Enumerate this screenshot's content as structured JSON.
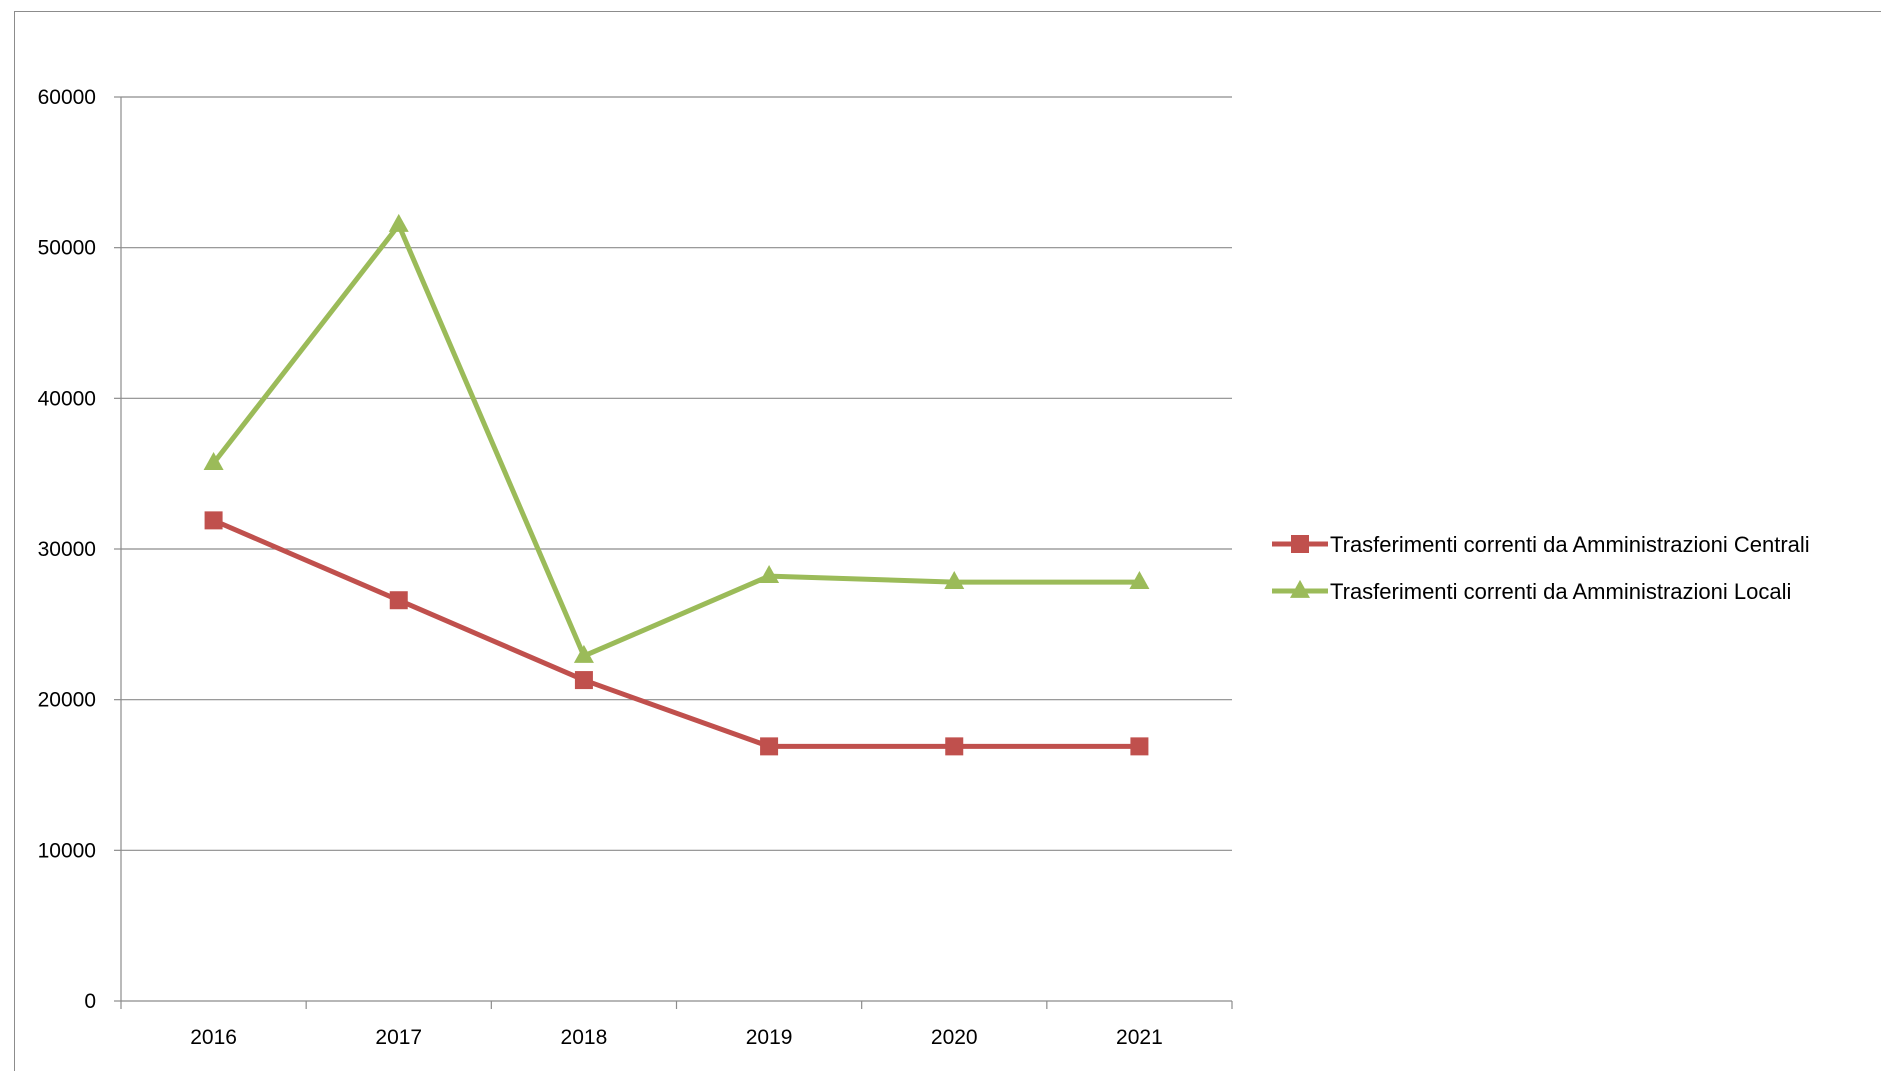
{
  "chart_data": {
    "type": "line",
    "title": "",
    "xlabel": "",
    "ylabel": "",
    "categories": [
      "2016",
      "2017",
      "2018",
      "2019",
      "2020",
      "2021"
    ],
    "ylim": [
      0,
      60000
    ],
    "yticks": [
      "0",
      "10000",
      "20000",
      "30000",
      "40000",
      "50000",
      "60000"
    ],
    "grid": "horizontal",
    "legend_position": "right",
    "series": [
      {
        "name": "Trasferimenti correnti da Amministrazioni Centrali",
        "values": [
          31900,
          26600,
          21300,
          16900,
          16900,
          16900
        ],
        "color": "#c0504d",
        "marker": "square"
      },
      {
        "name": "Trasferimenti correnti da Amministrazioni Locali",
        "values": [
          35700,
          51500,
          22900,
          28200,
          27800,
          27800
        ],
        "color": "#9bbb59",
        "marker": "triangle"
      }
    ]
  }
}
